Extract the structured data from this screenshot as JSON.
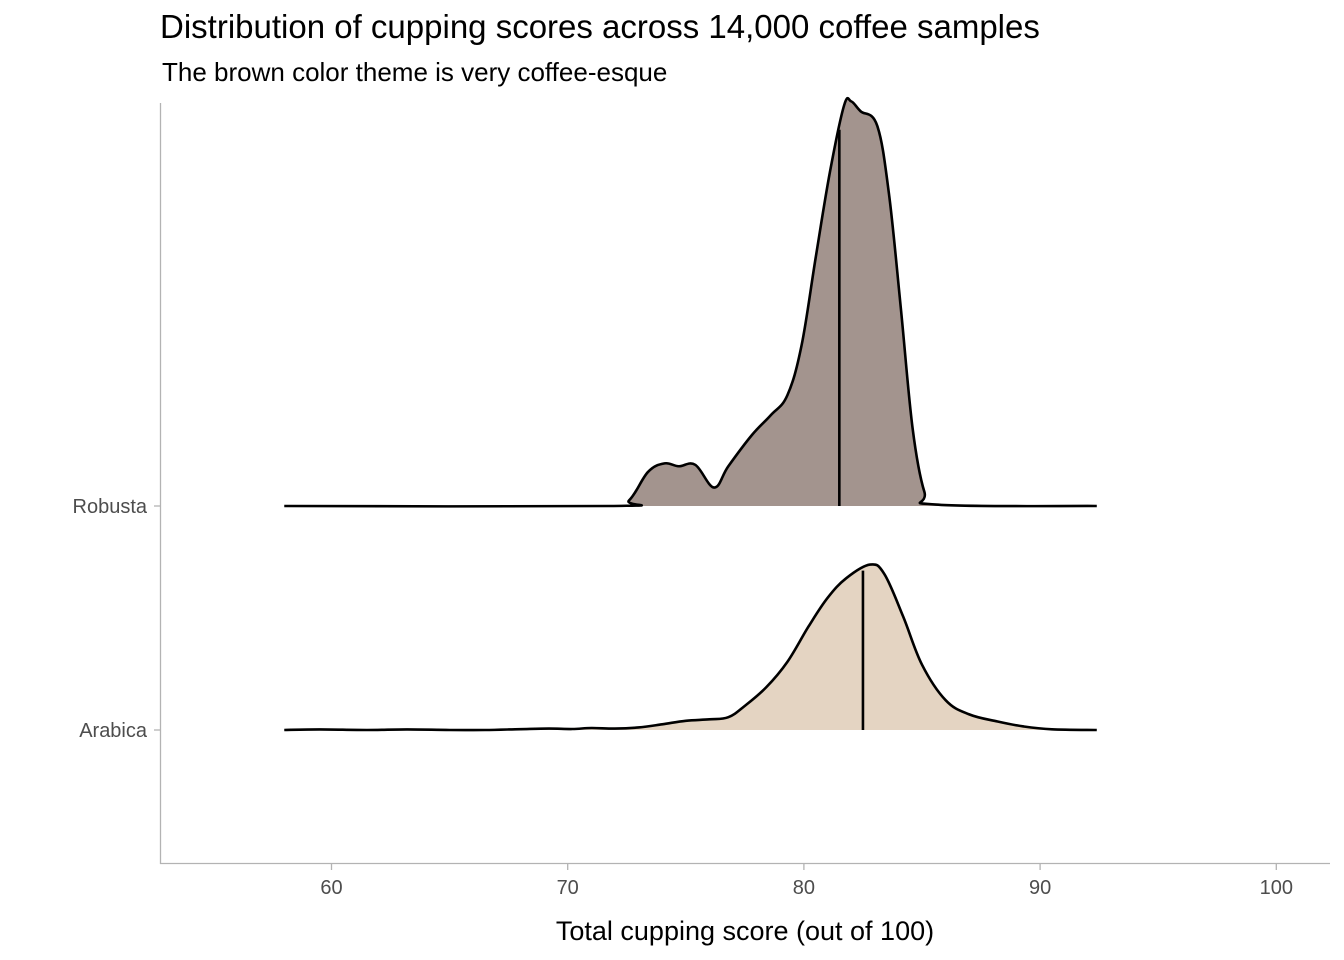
{
  "title": "Distribution of cupping scores across 14,000 coffee samples",
  "subtitle": "The brown color theme is very coffee-esque",
  "chart_data": {
    "type": "ridgeline-density",
    "title": "Distribution of cupping scores across 14,000 coffee samples",
    "subtitle": "The brown color theme is very coffee-esque",
    "xlabel": "Total cupping score (out of 100)",
    "ylabel": "",
    "xlim": [
      52.8,
      102.2
    ],
    "x_ticks": [
      60,
      70,
      80,
      90,
      100
    ],
    "x_tick_labels": [
      "60",
      "70",
      "80",
      "90",
      "100"
    ],
    "categories": [
      "Arabica",
      "Robusta"
    ],
    "grid": false,
    "series": [
      {
        "name": "Arabica",
        "color": "#d9c3aa",
        "median": 82.5,
        "density": [
          [
            58.0,
            0.0
          ],
          [
            59.5,
            0.004
          ],
          [
            61.5,
            0.0
          ],
          [
            63.2,
            0.004
          ],
          [
            65.0,
            0.0
          ],
          [
            66.5,
            0.0
          ],
          [
            68.0,
            0.006
          ],
          [
            69.2,
            0.01
          ],
          [
            70.2,
            0.007
          ],
          [
            71.0,
            0.014
          ],
          [
            72.0,
            0.01
          ],
          [
            73.0,
            0.018
          ],
          [
            74.0,
            0.04
          ],
          [
            75.0,
            0.065
          ],
          [
            76.0,
            0.075
          ],
          [
            76.8,
            0.09
          ],
          [
            77.5,
            0.17
          ],
          [
            78.4,
            0.3
          ],
          [
            79.3,
            0.48
          ],
          [
            80.2,
            0.73
          ],
          [
            81.0,
            0.93
          ],
          [
            81.8,
            1.07
          ],
          [
            82.8,
            1.165
          ],
          [
            83.4,
            1.1
          ],
          [
            84.2,
            0.8
          ],
          [
            85.0,
            0.46
          ],
          [
            86.0,
            0.21
          ],
          [
            87.0,
            0.11
          ],
          [
            88.2,
            0.06
          ],
          [
            89.3,
            0.025
          ],
          [
            90.5,
            0.005
          ],
          [
            92.4,
            0.0
          ]
        ]
      },
      {
        "name": "Robusta",
        "color": "#a3948e",
        "median": 81.5,
        "density": [
          [
            58.0,
            0.0
          ],
          [
            71.8,
            0.0
          ],
          [
            72.6,
            0.04
          ],
          [
            73.4,
            0.24
          ],
          [
            74.1,
            0.3
          ],
          [
            74.7,
            0.28
          ],
          [
            75.4,
            0.29
          ],
          [
            76.2,
            0.13
          ],
          [
            76.8,
            0.28
          ],
          [
            77.8,
            0.5
          ],
          [
            78.6,
            0.64
          ],
          [
            79.3,
            0.78
          ],
          [
            79.9,
            1.13
          ],
          [
            80.5,
            1.75
          ],
          [
            81.1,
            2.35
          ],
          [
            81.7,
            2.82
          ],
          [
            82.0,
            2.85
          ],
          [
            82.4,
            2.78
          ],
          [
            83.1,
            2.68
          ],
          [
            83.6,
            2.2
          ],
          [
            84.1,
            1.4
          ],
          [
            84.6,
            0.55
          ],
          [
            85.1,
            0.1
          ],
          [
            85.6,
            0.01
          ],
          [
            92.4,
            0.0
          ]
        ]
      }
    ]
  }
}
